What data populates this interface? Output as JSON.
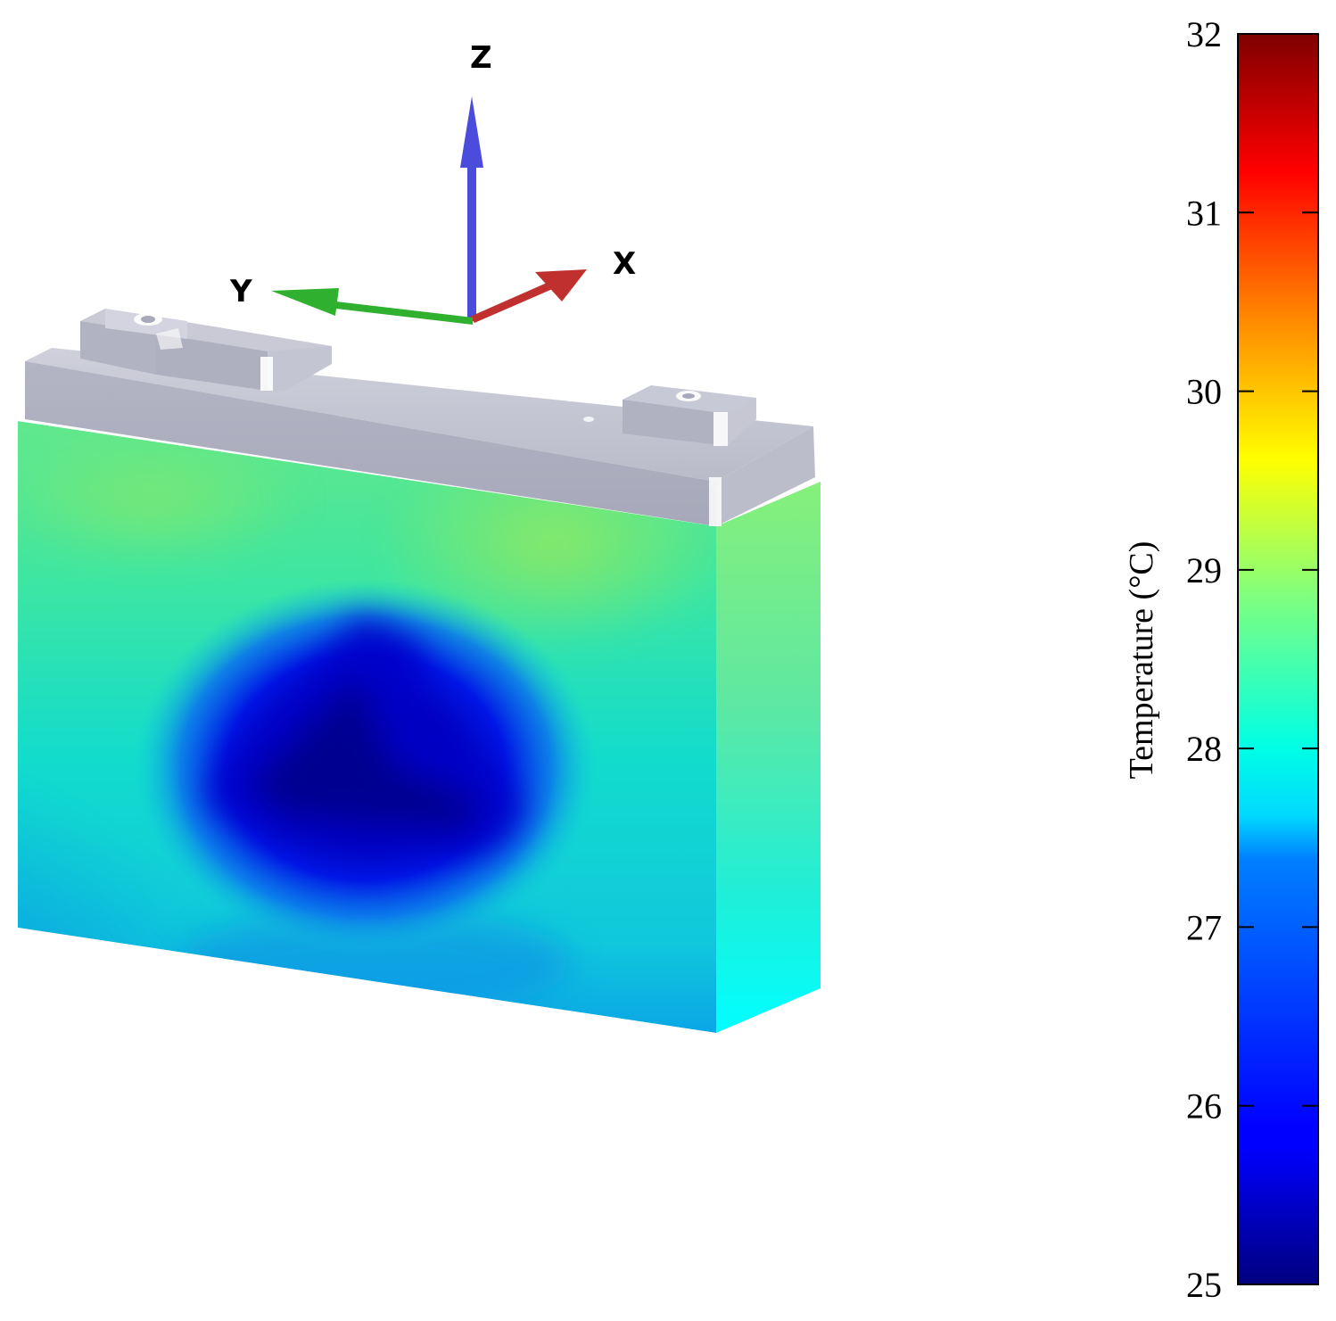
{
  "axes": {
    "x_label": "X",
    "y_label": "Y",
    "z_label": "Z",
    "colors": {
      "x": "#c0302f",
      "y": "#2fb02f",
      "z": "#4b4bdc"
    }
  },
  "colorbar": {
    "title": "Temperature (°C)",
    "min": 25,
    "max": 32,
    "ticks": [
      "25",
      "26",
      "27",
      "28",
      "29",
      "30",
      "31",
      "32"
    ],
    "colormap": "jet"
  },
  "battery": {
    "terminal_color": "#b8b9c8",
    "coldest_region": "center-left of front face"
  }
}
